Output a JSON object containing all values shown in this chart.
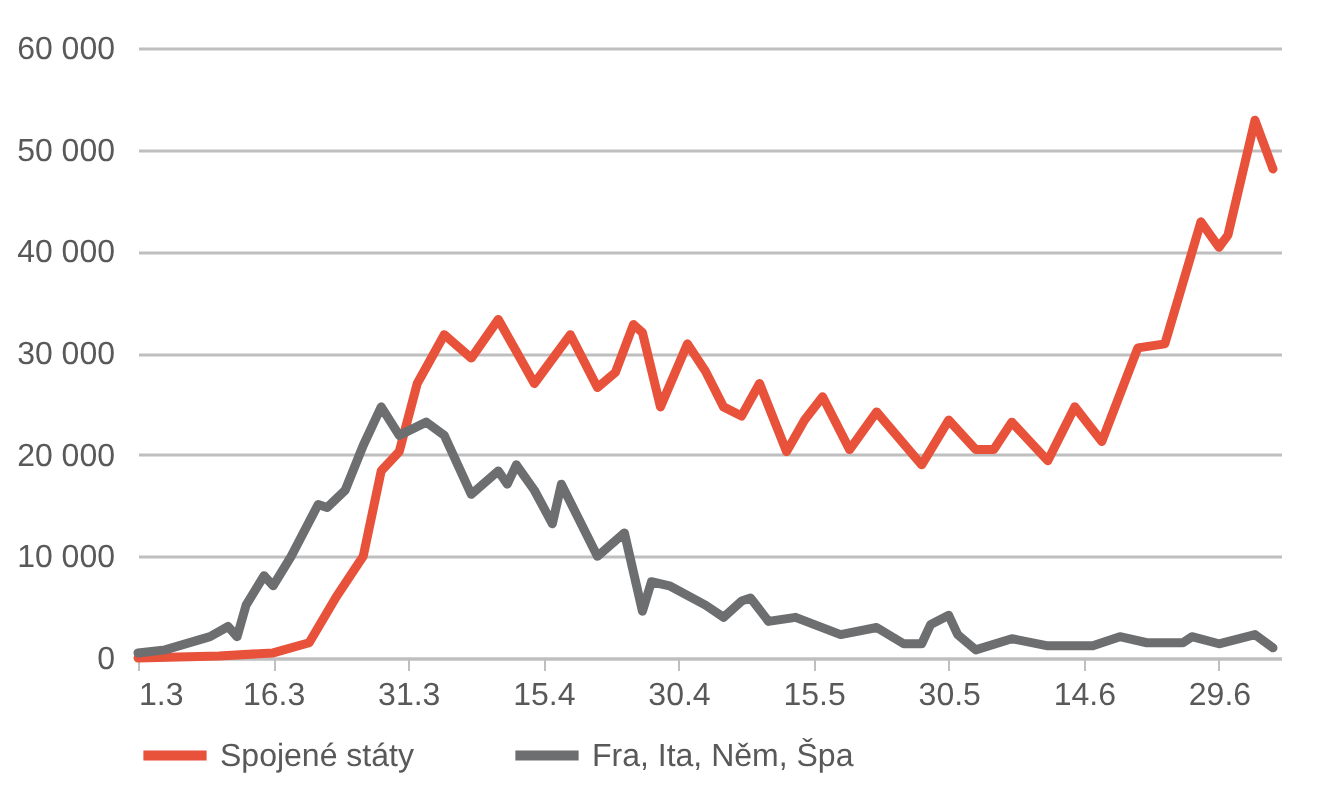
{
  "chart_data": {
    "type": "line",
    "xlim": [
      "--03-01",
      "--07-06"
    ],
    "xticks": [
      {
        "value": "--03-01",
        "label": "1.3"
      },
      {
        "value": "--03-16",
        "label": "16.3"
      },
      {
        "value": "--03-31",
        "label": "31.3"
      },
      {
        "value": "--04-15",
        "label": "15.4"
      },
      {
        "value": "--04-30",
        "label": "30.4"
      },
      {
        "value": "--05-15",
        "label": "15.5"
      },
      {
        "value": "--05-30",
        "label": "30.5"
      },
      {
        "value": "--06-14",
        "label": "14.6"
      },
      {
        "value": "--06-29",
        "label": "29.6"
      }
    ],
    "ylim": [
      0,
      60000
    ],
    "yticks": [
      {
        "value": 0,
        "label": "0"
      },
      {
        "value": 10000,
        "label": "10 000"
      },
      {
        "value": 20000,
        "label": "20 000"
      },
      {
        "value": 30000,
        "label": "30 000"
      },
      {
        "value": 40000,
        "label": "40 000"
      },
      {
        "value": 50000,
        "label": "50 000"
      },
      {
        "value": 60000,
        "label": "60 000"
      }
    ],
    "grid": "y",
    "legend": "bottom",
    "series": [
      {
        "name": "Spojené státy",
        "color": "#e8513a",
        "x": [
          "--03-01",
          "--03-10",
          "--03-16",
          "--03-20",
          "--03-23",
          "--03-26",
          "--03-28",
          "--03-30",
          "--04-01",
          "--04-04",
          "--04-07",
          "--04-10",
          "--04-14",
          "--04-18",
          "--04-21",
          "--04-23",
          "--04-25",
          "--04-26",
          "--04-28",
          "--05-01",
          "--05-03",
          "--05-05",
          "--05-07",
          "--05-09",
          "--05-12",
          "--05-14",
          "--05-16",
          "--05-19",
          "--05-22",
          "--05-27",
          "--05-30",
          "--06-02",
          "--06-04",
          "--06-06",
          "--06-10",
          "--06-13",
          "--06-16",
          "--06-20",
          "--06-23",
          "--06-27",
          "--06-29",
          "--06-30",
          "--07-03",
          "--07-05"
        ],
        "values": [
          0,
          200,
          500,
          1500,
          6000,
          10000,
          18400,
          20300,
          27000,
          31800,
          29500,
          33300,
          27000,
          31800,
          26600,
          28100,
          32800,
          32000,
          24700,
          30900,
          28200,
          24700,
          23800,
          27000,
          20300,
          23400,
          25700,
          20500,
          24200,
          19000,
          23400,
          20500,
          20500,
          23200,
          19400,
          24700,
          21300,
          30500,
          30900,
          42900,
          40400,
          41600,
          52900,
          48100
        ]
      },
      {
        "name": "Fra, Ita, Něm, Špa",
        "color": "#6d6e70",
        "x": [
          "--03-01",
          "--03-04",
          "--03-09",
          "--03-11",
          "--03-12",
          "--03-13",
          "--03-15",
          "--03-16",
          "--03-18",
          "--03-21",
          "--03-22",
          "--03-24",
          "--03-26",
          "--03-28",
          "--03-30",
          "--04-02",
          "--04-04",
          "--04-07",
          "--04-10",
          "--04-11",
          "--04-12",
          "--04-14",
          "--04-16",
          "--04-17",
          "--04-21",
          "--04-24",
          "--04-26",
          "--04-27",
          "--04-29",
          "--05-03",
          "--05-05",
          "--05-07",
          "--05-08",
          "--05-10",
          "--05-13",
          "--05-18",
          "--05-22",
          "--05-25",
          "--05-27",
          "--05-28",
          "--05-30",
          "--05-31",
          "--06-02",
          "--06-06",
          "--06-10",
          "--06-15",
          "--06-18",
          "--06-21",
          "--06-25",
          "--06-26",
          "--06-29",
          "--07-03",
          "--07-05"
        ],
        "values": [
          500,
          800,
          2100,
          3100,
          2100,
          5200,
          8100,
          7100,
          10000,
          15100,
          14800,
          16500,
          20900,
          24700,
          21900,
          23200,
          21900,
          16100,
          18400,
          17100,
          19000,
          16500,
          13200,
          17100,
          10000,
          12300,
          4600,
          7500,
          7100,
          5200,
          4000,
          5600,
          5900,
          3600,
          4000,
          2300,
          3000,
          1400,
          1400,
          3300,
          4200,
          2300,
          800,
          1900,
          1200,
          1200,
          2100,
          1500,
          1500,
          2100,
          1400,
          2300,
          1000
        ]
      }
    ]
  }
}
